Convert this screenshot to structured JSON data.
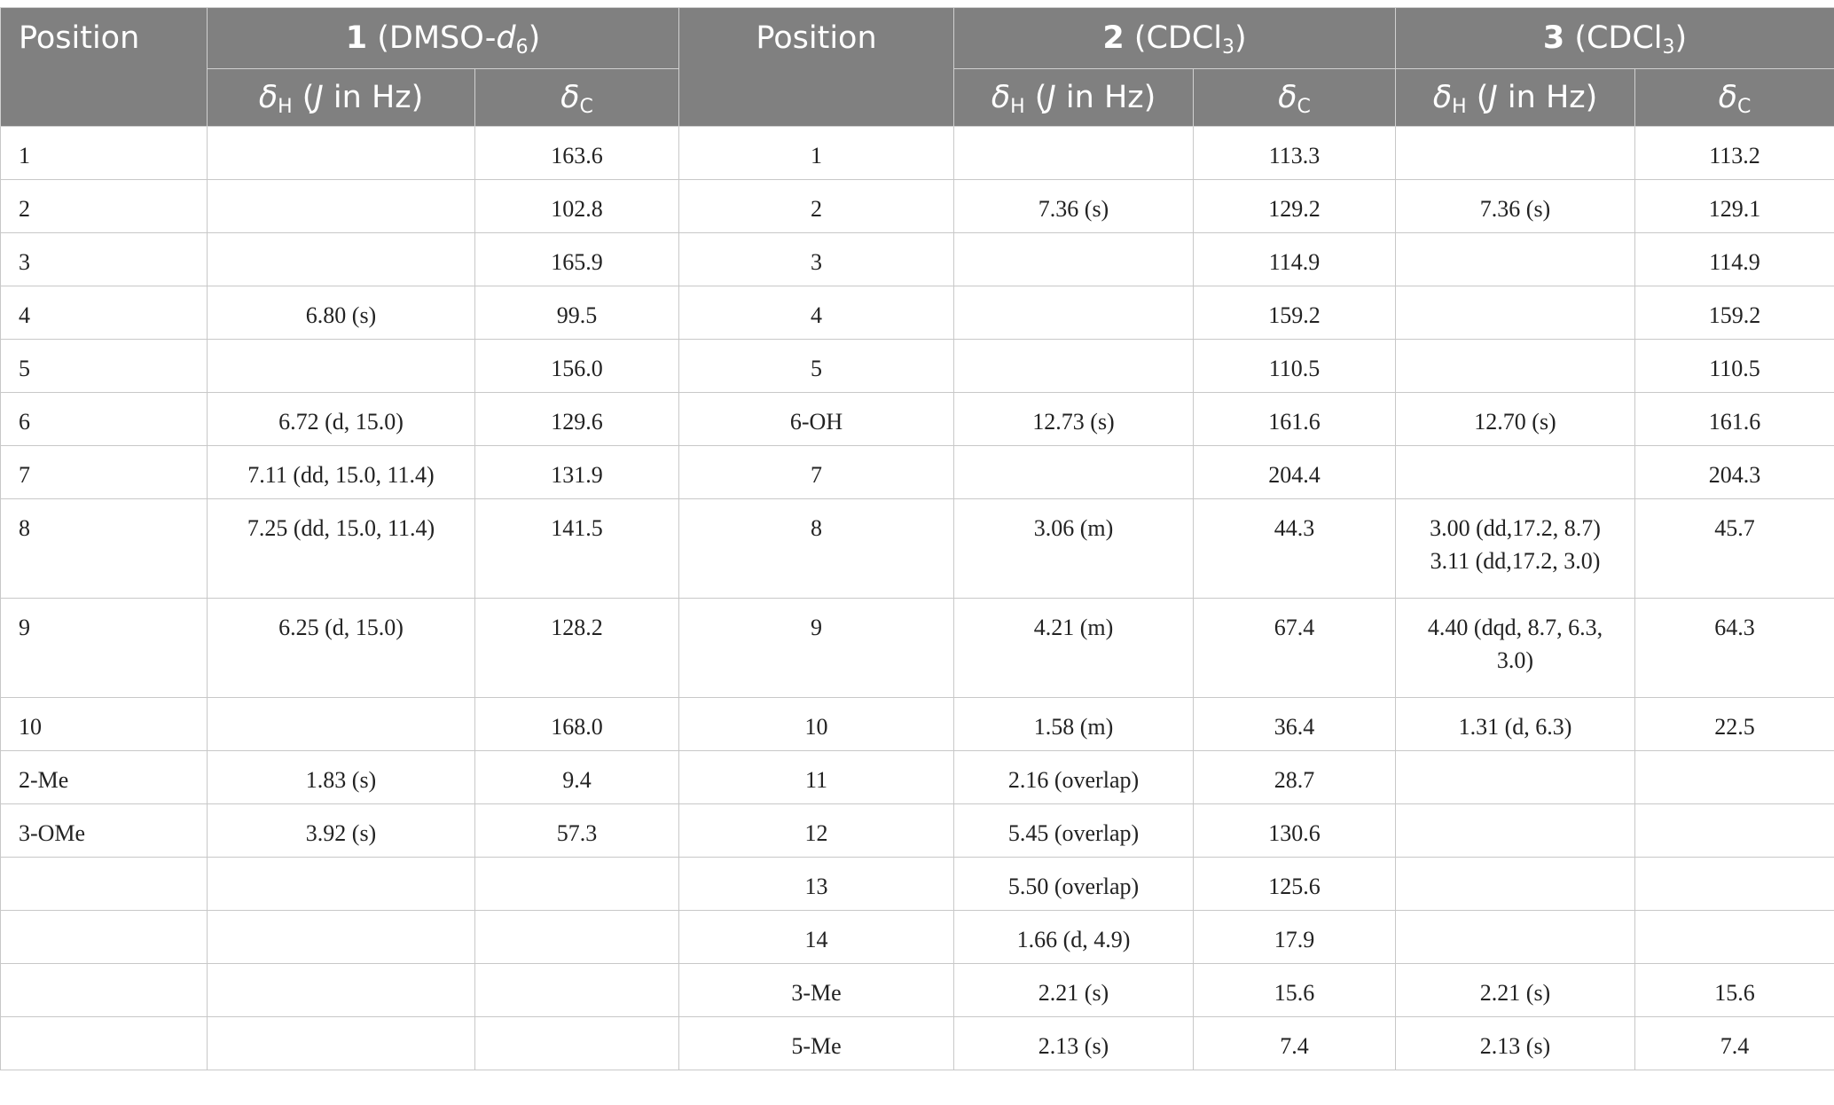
{
  "header": {
    "position_label": "Position",
    "compound1": {
      "num": "1",
      "solvent_pre": "(DMSO-",
      "solvent_sub_letter": "d",
      "solvent_sub": "6",
      "solvent_post": ")"
    },
    "compound2": {
      "num": "2",
      "solvent_pre": "(CDCl",
      "solvent_sub": "3",
      "solvent_post": ")"
    },
    "compound3": {
      "num": "3",
      "solvent_pre": "(CDCl",
      "solvent_sub": "3",
      "solvent_post": ")"
    },
    "deltaH": {
      "sym": "δ",
      "sub": "H",
      "paren_open": "(",
      "j": "J",
      "rest": " in Hz)"
    },
    "deltaC": {
      "sym": "δ",
      "sub": "C"
    }
  },
  "rows": [
    {
      "p1": "1",
      "h1": "",
      "c1": "163.6",
      "p2": "1",
      "h2": "",
      "c2": "113.3",
      "h3": "",
      "c3": "113.2"
    },
    {
      "p1": "2",
      "h1": "",
      "c1": "102.8",
      "p2": "2",
      "h2": "7.36 (s)",
      "c2": "129.2",
      "h3": "7.36 (s)",
      "c3": "129.1"
    },
    {
      "p1": "3",
      "h1": "",
      "c1": "165.9",
      "p2": "3",
      "h2": "",
      "c2": "114.9",
      "h3": "",
      "c3": "114.9"
    },
    {
      "p1": "4",
      "h1": "6.80 (s)",
      "c1": "99.5",
      "p2": "4",
      "h2": "",
      "c2": "159.2",
      "h3": "",
      "c3": "159.2"
    },
    {
      "p1": "5",
      "h1": "",
      "c1": "156.0",
      "p2": "5",
      "h2": "",
      "c2": "110.5",
      "h3": "",
      "c3": "110.5"
    },
    {
      "p1": "6",
      "h1": "6.72 (d, 15.0)",
      "c1": "129.6",
      "p2": "6-OH",
      "h2": "12.73 (s)",
      "c2": "161.6",
      "h3": "12.70 (s)",
      "c3": "161.6"
    },
    {
      "p1": "7",
      "h1": "7.11 (dd, 15.0, 11.4)",
      "c1": "131.9",
      "p2": "7",
      "h2": "",
      "c2": "204.4",
      "h3": "",
      "c3": "204.3"
    },
    {
      "p1": "8",
      "h1": "7.25 (dd, 15.0, 11.4)",
      "c1": "141.5",
      "p2": "8",
      "h2": "3.06 (m)",
      "c2": "44.3",
      "h3a": "3.00 (dd,17.2, 8.7)",
      "h3b": "3.11 (dd,17.2, 3.0)",
      "c3": "45.7"
    },
    {
      "p1": "9",
      "h1": "6.25 (d, 15.0)",
      "c1": "128.2",
      "p2": "9",
      "h2": "4.21 (m)",
      "c2": "67.4",
      "h3a": "4.40 (dqd, 8.7, 6.3,",
      "h3b": "3.0)",
      "c3": "64.3"
    },
    {
      "p1": "10",
      "h1": "",
      "c1": "168.0",
      "p2": "10",
      "h2": "1.58 (m)",
      "c2": "36.4",
      "h3": "1.31 (d, 6.3)",
      "c3": "22.5"
    },
    {
      "p1": "2-Me",
      "h1": "1.83 (s)",
      "c1": "9.4",
      "p2": "11",
      "h2": "2.16 (overlap)",
      "c2": "28.7",
      "h3": "",
      "c3": ""
    },
    {
      "p1": "3-OMe",
      "h1": "3.92 (s)",
      "c1": "57.3",
      "p2": "12",
      "h2": "5.45 (overlap)",
      "c2": "130.6",
      "h3": "",
      "c3": ""
    },
    {
      "p1": "",
      "h1": "",
      "c1": "",
      "p2": "13",
      "h2": "5.50 (overlap)",
      "c2": "125.6",
      "h3": "",
      "c3": ""
    },
    {
      "p1": "",
      "h1": "",
      "c1": "",
      "p2": "14",
      "h2": "1.66 (d, 4.9)",
      "c2": "17.9",
      "h3": "",
      "c3": ""
    },
    {
      "p1": "",
      "h1": "",
      "c1": "",
      "p2": "3-Me",
      "h2": "2.21 (s)",
      "c2": "15.6",
      "h3": "2.21 (s)",
      "c3": "15.6"
    },
    {
      "p1": "",
      "h1": "",
      "c1": "",
      "p2": "5-Me",
      "h2": "2.13 (s)",
      "c2": "7.4",
      "h3": "2.13 (s)",
      "c3": "7.4"
    }
  ]
}
